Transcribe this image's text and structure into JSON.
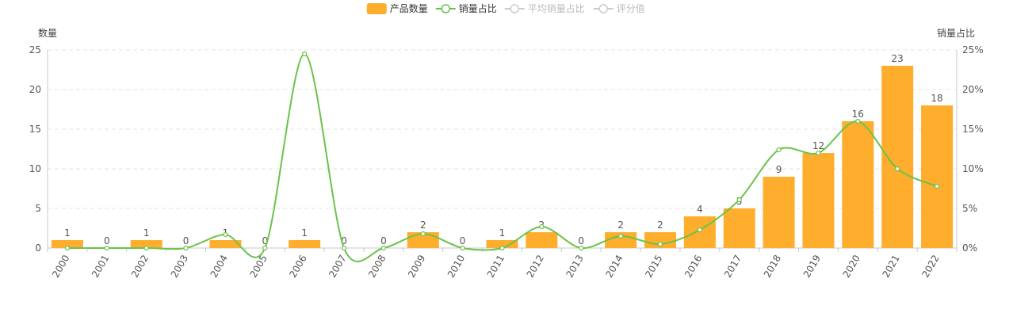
{
  "legend": {
    "items": [
      {
        "label": "产品数量",
        "type": "bar",
        "color": "#ffad2d",
        "enabled": true
      },
      {
        "label": "销量占比",
        "type": "line",
        "color": "#6cc24a",
        "enabled": true
      },
      {
        "label": "平均销量占比",
        "type": "line",
        "color": "#c8c8c8",
        "enabled": false
      },
      {
        "label": "评分值",
        "type": "line",
        "color": "#c8c8c8",
        "enabled": false
      }
    ]
  },
  "chart_data": {
    "type": "bar",
    "categories": [
      "2000",
      "2001",
      "2002",
      "2003",
      "2004",
      "2005",
      "2006",
      "2007",
      "2008",
      "2009",
      "2010",
      "2011",
      "2012",
      "2013",
      "2014",
      "2015",
      "2016",
      "2017",
      "2018",
      "2019",
      "2020",
      "2021",
      "2022"
    ],
    "series": [
      {
        "name": "产品数量",
        "type": "bar",
        "axis": "left",
        "color": "#ffad2d",
        "values": [
          1,
          0,
          1,
          0,
          1,
          0,
          1,
          0,
          0,
          2,
          0,
          1,
          2,
          0,
          2,
          2,
          4,
          5,
          9,
          12,
          16,
          23,
          18
        ]
      },
      {
        "name": "销量占比",
        "type": "line",
        "axis": "right",
        "color": "#6cc24a",
        "values": [
          0,
          0,
          0,
          0,
          1.7,
          0,
          24.5,
          0,
          0,
          1.8,
          0,
          0,
          2.7,
          0,
          1.5,
          0.5,
          2.3,
          6.1,
          12.4,
          12,
          16,
          10,
          7.8
        ]
      }
    ],
    "ylabel": "数量",
    "ylabel_right": "销量占比",
    "ylim": [
      0,
      25
    ],
    "yticks": [
      "0",
      "5",
      "10",
      "15",
      "20",
      "25"
    ],
    "ylim_right": [
      0,
      25
    ],
    "yticks_right": [
      "0%",
      "5%",
      "10%",
      "15%",
      "20%",
      "25%"
    ],
    "grid": true,
    "legend_position": "top-center"
  }
}
